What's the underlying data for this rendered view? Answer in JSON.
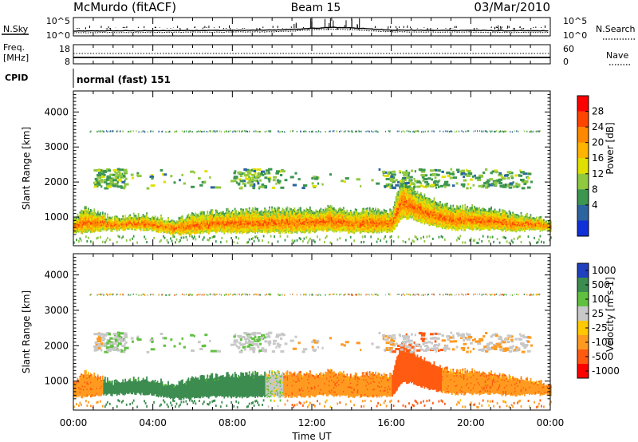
{
  "header": {
    "station": "McMurdo (fitACF)",
    "beam": "Beam 15",
    "date": "03/Mar/2010"
  },
  "nsky_panel": {
    "label": "N.Sky",
    "left_ticks": [
      "10^5",
      "10^0"
    ],
    "right_ticks": [
      "10^5",
      "10^0"
    ],
    "right_label": "N.Search"
  },
  "freq_panel": {
    "label_1": "Freq.",
    "label_2": "[MHz]",
    "left_ticks": [
      "18",
      "8"
    ],
    "right_ticks": [
      "60",
      "0"
    ],
    "right_label": "Nave"
  },
  "cpid_panel": {
    "label": "CPID",
    "value": "normal (fast) 151"
  },
  "power_panel": {
    "ylabel": "Slant Range [km]",
    "cbar_label": "Power [dB]",
    "cbar_ticks": [
      "28",
      "24",
      "20",
      "16",
      "12",
      "8",
      "4"
    ],
    "cbar_colors": [
      "#ff0000",
      "#ff4400",
      "#ff8800",
      "#ffb400",
      "#e0e000",
      "#90c840",
      "#3c9650",
      "#2c64a0",
      "#1030d8"
    ]
  },
  "velocity_panel": {
    "ylabel": "Slant Range [km]",
    "cbar_label": "Velocity [m s-1]",
    "cbar_ticks": [
      "1000",
      "500",
      "100",
      "25",
      "-25",
      "-100",
      "-500",
      "-1000"
    ],
    "cbar_colors": [
      "#2040c0",
      "#3c8c50",
      "#60c040",
      "#c8c8c8",
      "#ffc800",
      "#ff9a20",
      "#ff5a10",
      "#ff0000"
    ]
  },
  "x_axis": {
    "label": "Time UT",
    "ticks": [
      "00:00",
      "04:00",
      "08:00",
      "12:00",
      "16:00",
      "20:00",
      "00:00"
    ]
  },
  "chart_data": [
    {
      "type": "line",
      "title": "N.Sky / N.Search",
      "x_hours": [
        0,
        2,
        4,
        6,
        8,
        10,
        11,
        12,
        13,
        14,
        15,
        16,
        18,
        20,
        22,
        24
      ],
      "series": [
        {
          "name": "N.Sky",
          "values": [
            1.2,
            1.3,
            1.3,
            1.4,
            1.4,
            1.5,
            1.7,
            2.0,
            2.3,
            2.2,
            1.8,
            1.5,
            1.4,
            1.4,
            1.3,
            1.3
          ]
        },
        {
          "name": "N.Search",
          "values": [
            0.7,
            0.8,
            0.8,
            0.9,
            0.9,
            1.0,
            1.2,
            1.6,
            1.8,
            1.6,
            1.3,
            1.0,
            0.9,
            0.9,
            0.8,
            0.8
          ]
        }
      ],
      "ylim": [
        0,
        5
      ]
    },
    {
      "type": "line",
      "title": "Freq. / Nave",
      "x_hours": [
        0,
        24
      ],
      "series": [
        {
          "name": "Freq.",
          "values": [
            11,
            11
          ]
        },
        {
          "name": "Nave",
          "values": [
            20,
            20
          ]
        }
      ]
    },
    {
      "type": "heatmap",
      "title": "Power",
      "xlabel": "Time UT",
      "ylabel": "Slant Range [km]",
      "xlim_hours": [
        0,
        24
      ],
      "ylim_km": [
        180,
        4600
      ],
      "cbar_range_db": [
        0,
        32
      ],
      "bands": [
        {
          "t": [
            0,
            0.6,
            1.2,
            2,
            3,
            4,
            5,
            6,
            7,
            8,
            9,
            10,
            11,
            12,
            13,
            14,
            15,
            16,
            16.5,
            17,
            18,
            19,
            20,
            21,
            22,
            23,
            24
          ],
          "lo": [
            550,
            560,
            600,
            620,
            650,
            620,
            500,
            520,
            560,
            550,
            560,
            560,
            560,
            580,
            600,
            560,
            580,
            560,
            950,
            950,
            760,
            640,
            640,
            640,
            600,
            620,
            620
          ],
          "hi": [
            900,
            1250,
            1100,
            950,
            1050,
            1000,
            900,
            1050,
            1150,
            1150,
            1200,
            1200,
            1200,
            1200,
            1250,
            1150,
            1200,
            1150,
            2100,
            1750,
            1500,
            1300,
            1250,
            1200,
            1100,
            1000,
            900
          ],
          "pow_core": 26,
          "pow_edge": 10
        }
      ],
      "scatter_bands": [
        {
          "name": "upper scatter",
          "t_range": [
            1,
            23.5
          ],
          "km_range": [
            1850,
            2400
          ],
          "pow": 8
        },
        {
          "name": "top line",
          "t_range": [
            0.8,
            23.5
          ],
          "km_range": [
            3450,
            3480
          ],
          "pow": 6
        }
      ]
    },
    {
      "type": "heatmap",
      "title": "Velocity",
      "xlabel": "Time UT",
      "ylabel": "Slant Range [km]",
      "xlim_hours": [
        0,
        24
      ],
      "ylim_km": [
        180,
        4600
      ],
      "segments": [
        {
          "t": [
            0,
            1.5
          ],
          "vel": -150
        },
        {
          "t": [
            1.5,
            9.6
          ],
          "vel": 300
        },
        {
          "t": [
            9.6,
            10.5
          ],
          "vel": 25
        },
        {
          "t": [
            10.5,
            16
          ],
          "vel": -150
        },
        {
          "t": [
            16,
            18.5
          ],
          "vel": -450
        },
        {
          "t": [
            18.5,
            24
          ],
          "vel": -150
        }
      ],
      "upper_band_vel": 0
    }
  ]
}
